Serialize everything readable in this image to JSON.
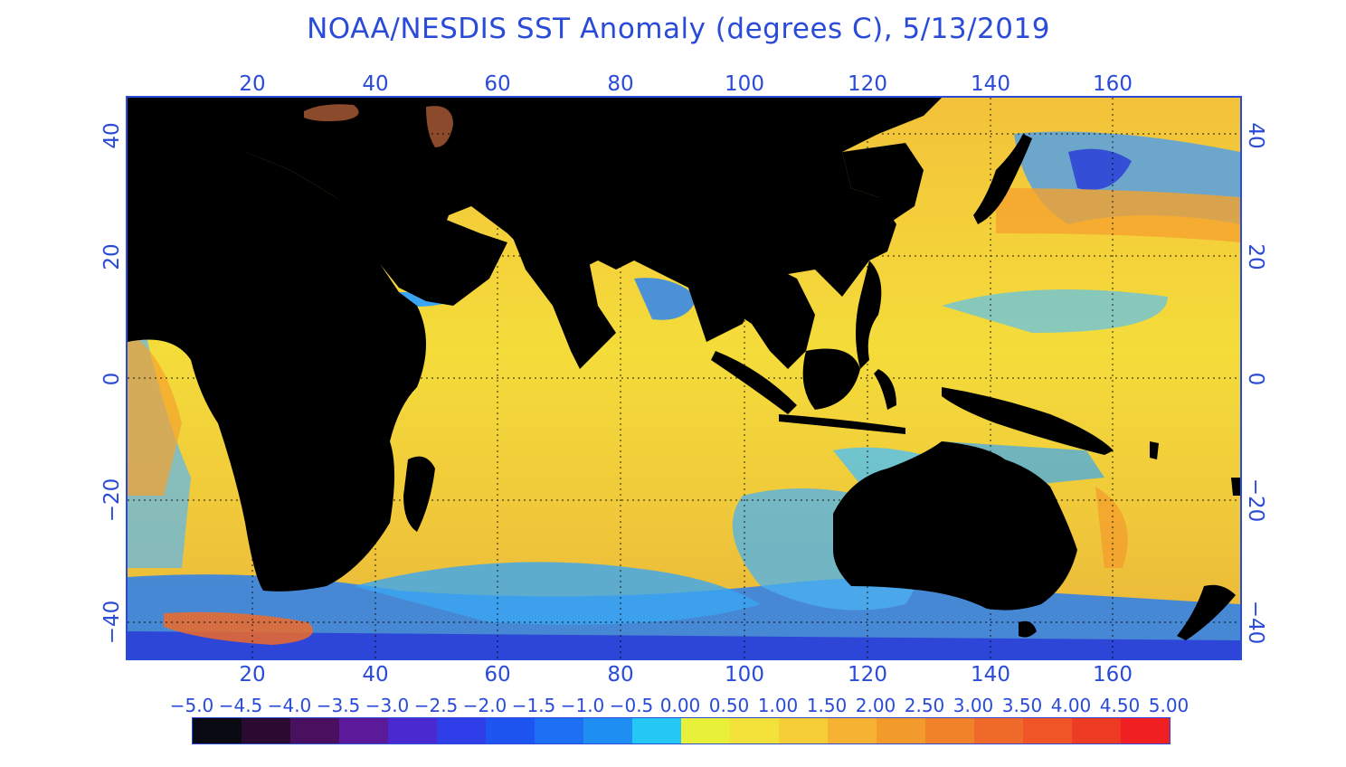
{
  "title": "NOAA/NESDIS SST Anomaly (degrees C), 5/13/2019",
  "axes": {
    "x_ticks": [
      "20",
      "40",
      "60",
      "80",
      "100",
      "120",
      "140",
      "160"
    ],
    "y_ticks_left": [
      "40",
      "20",
      "0",
      "−20",
      "−40"
    ],
    "y_ticks_right": [
      "40",
      "20",
      "0",
      "−20",
      "−40"
    ],
    "x_range": [
      0,
      180
    ],
    "y_range": [
      -45,
      45
    ]
  },
  "colorbar": {
    "labels": [
      "−5.0",
      "−4.5",
      "−4.0",
      "−3.5",
      "−3.0",
      "−2.5",
      "−2.0",
      "−1.5",
      "−1.0",
      "−0.5",
      "0.00",
      "0.50",
      "1.00",
      "1.50",
      "2.00",
      "2.50",
      "3.00",
      "3.50",
      "4.00",
      "4.50",
      "5.00"
    ],
    "colors": [
      "#0a0a12",
      "#2a0a2e",
      "#4a1060",
      "#5a1a9a",
      "#4a2ad0",
      "#2f3ee8",
      "#1e55f0",
      "#1f6ff2",
      "#1e8ef2",
      "#24c8f5",
      "#e8f03a",
      "#f4e23a",
      "#f6cf36",
      "#f5b233",
      "#f39a2c",
      "#f1822a",
      "#ef6a28",
      "#ef5526",
      "#ee3b24",
      "#ef1f22"
    ]
  },
  "colors": {
    "land": "#000000",
    "ocean_base": "#f2cd3a",
    "axis": "#2a4bd7",
    "ice": "#8b4a2b"
  }
}
